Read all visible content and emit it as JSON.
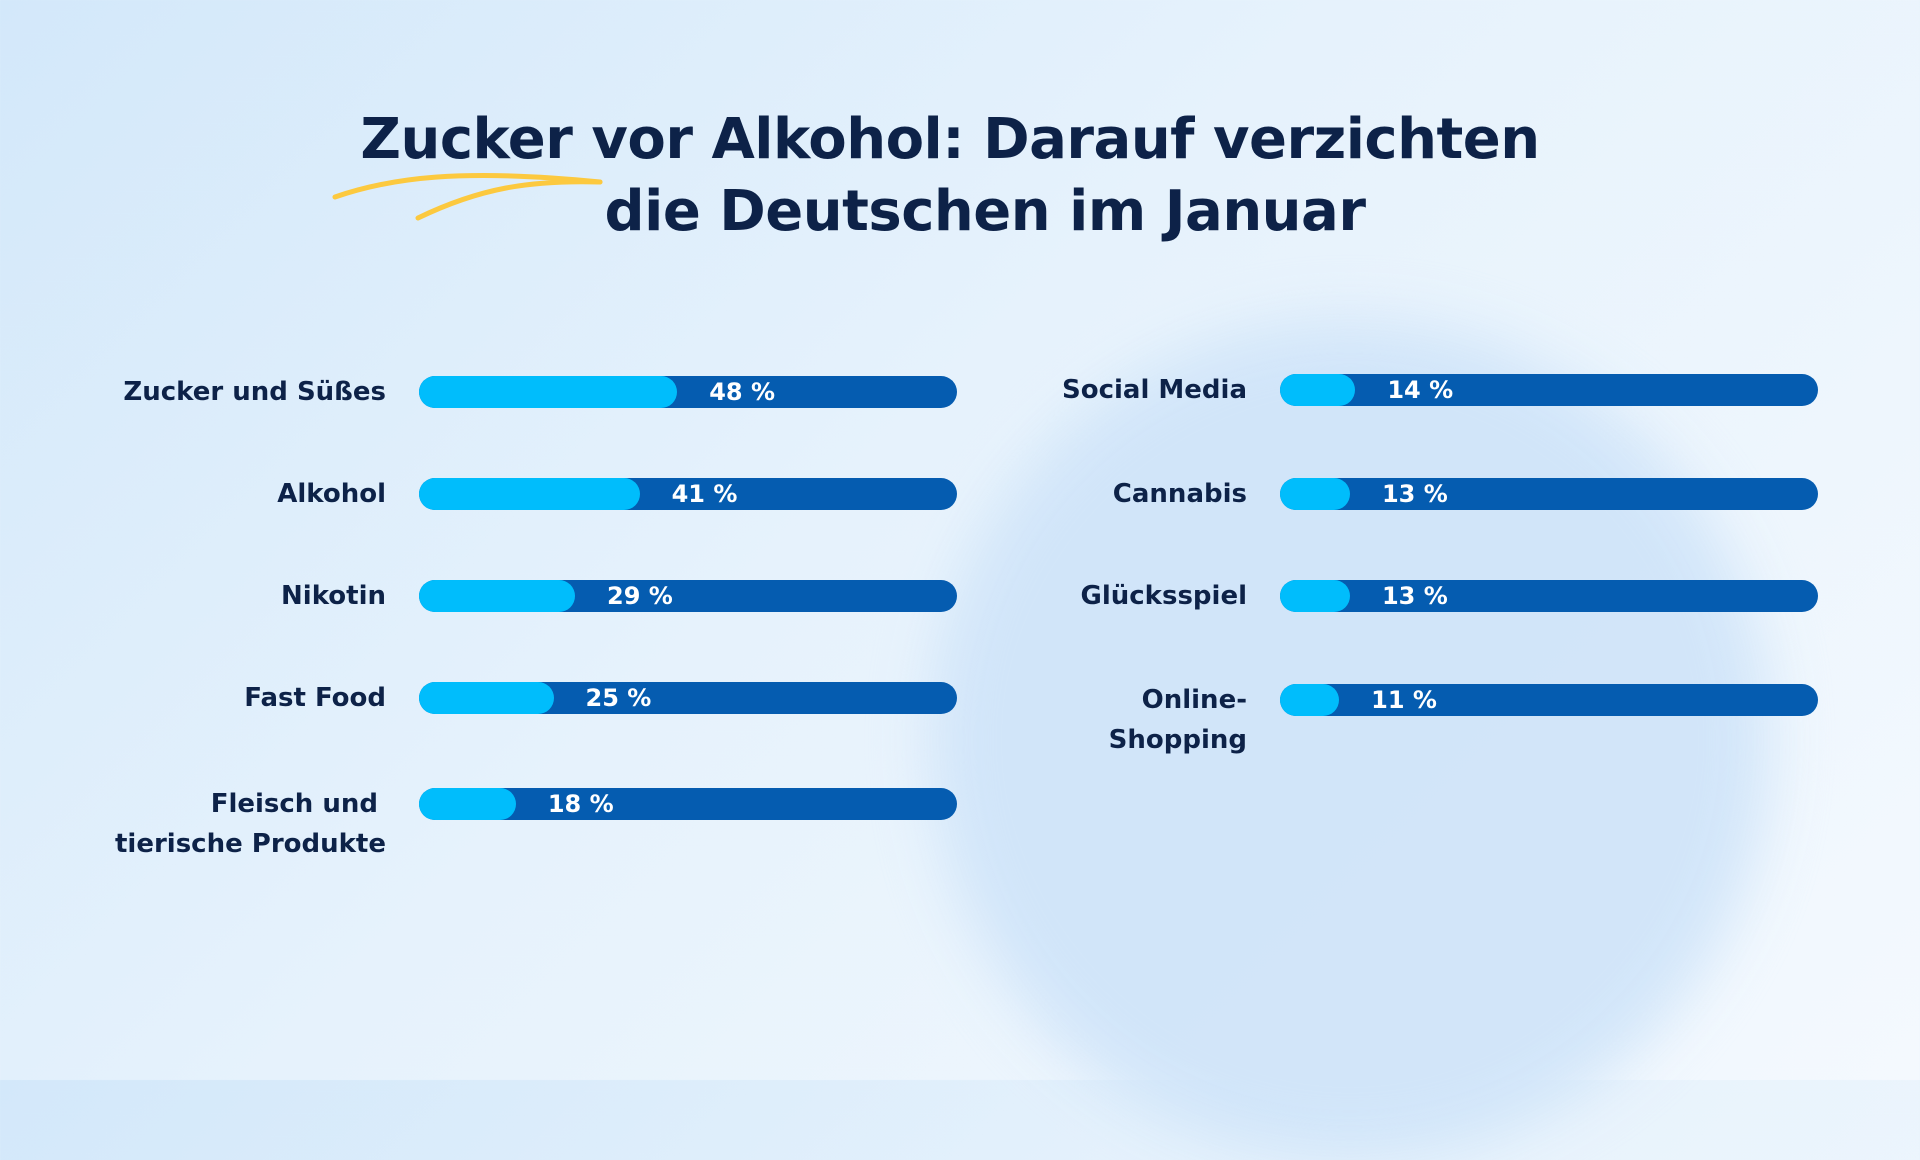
{
  "chart_data": {
    "type": "bar",
    "orientation": "horizontal",
    "title": "Zucker vor Alkohol: Darauf verzichten die Deutschen im Januar",
    "title_lines": [
      "Zucker vor Alkohol: Darauf verzichten",
      "die Deutschen im Januar"
    ],
    "xlim": [
      0,
      100
    ],
    "unit": "%",
    "colors": {
      "fill": "#00bdfc",
      "track": "#055cb0",
      "text": "#0d2248",
      "accent": "#fcc93f"
    },
    "series": [
      {
        "label": "Zucker und Süßes",
        "value": 48,
        "display": "48 %"
      },
      {
        "label": "Alkohol",
        "value": 41,
        "display": "41 %"
      },
      {
        "label": "Nikotin",
        "value": 29,
        "display": "29 %"
      },
      {
        "label": "Fast Food",
        "value": 25,
        "display": "25 %"
      },
      {
        "label": "Fleisch und tierische Produkte",
        "label_lines": [
          "Fleisch und",
          "tierische Produkte"
        ],
        "value": 18,
        "display": "18 %"
      },
      {
        "label": "Social Media",
        "value": 14,
        "display": "14 %"
      },
      {
        "label": "Cannabis",
        "value": 13,
        "display": "13 %"
      },
      {
        "label": "Glücksspiel",
        "value": 13,
        "display": "13 %"
      },
      {
        "label": "Online-Shopping",
        "label_lines": [
          "Online-",
          "Shopping"
        ],
        "value": 11,
        "display": "11 %"
      }
    ]
  }
}
